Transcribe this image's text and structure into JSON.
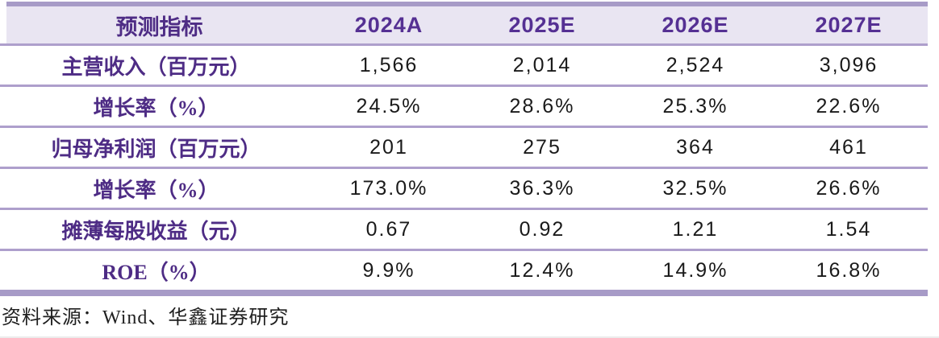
{
  "colors": {
    "accent_purple_text": "#4e2c85",
    "year_header_purple": "#553093",
    "thick_border_purple": "#a79bc7",
    "row_line_purple": "#ae9fcc",
    "header_row_background": "#e9e5f2",
    "value_text": "#1a1a1a"
  },
  "table": {
    "header": {
      "metric_label": "预测指标",
      "years": [
        "2024A",
        "2025E",
        "2026E",
        "2027E"
      ]
    },
    "rows": [
      {
        "label": "主营收入（百万元）",
        "values": [
          "1,566",
          "2,014",
          "2,524",
          "3,096"
        ]
      },
      {
        "label": "增长率（%）",
        "values": [
          "24.5%",
          "28.6%",
          "25.3%",
          "22.6%"
        ]
      },
      {
        "label": "归母净利润（百万元）",
        "values": [
          "201",
          "275",
          "364",
          "461"
        ]
      },
      {
        "label": "增长率（%）",
        "values": [
          "173.0%",
          "36.3%",
          "32.5%",
          "26.6%"
        ]
      },
      {
        "label": "摊薄每股收益（元）",
        "values": [
          "0.67",
          "0.92",
          "1.21",
          "1.54"
        ]
      },
      {
        "label": "ROE（%）",
        "values": [
          "9.9%",
          "12.4%",
          "14.9%",
          "16.8%"
        ]
      }
    ]
  },
  "footer": {
    "source_text": "资料来源：Wind、华鑫证券研究"
  }
}
